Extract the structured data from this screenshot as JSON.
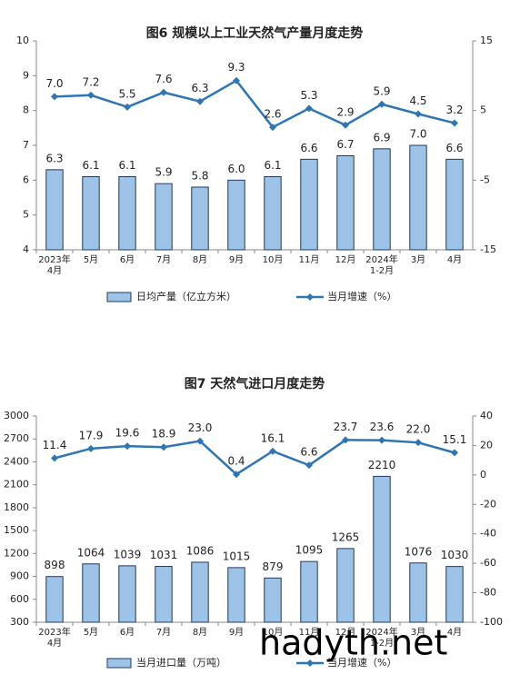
{
  "chart_data": [
    {
      "type": "combo",
      "title": "图6 规模以上工业天然气产量月度走势",
      "categories": [
        "2023年\n4月",
        "5月",
        "6月",
        "7月",
        "8月",
        "9月",
        "10月",
        "11月",
        "12月",
        "2024年\n1-2月",
        "3月",
        "4月"
      ],
      "ylim": [
        4,
        10
      ],
      "yticks": [
        4,
        5,
        6,
        7,
        8,
        9,
        10
      ],
      "y2lim": [
        -15,
        15
      ],
      "y2ticks": [
        -15,
        -5,
        5,
        15
      ],
      "series": [
        {
          "name": "日均产量（亿立方米）",
          "type": "bar",
          "color": "#9dc3e6",
          "values": [
            6.3,
            6.1,
            6.1,
            5.9,
            5.8,
            6.0,
            6.1,
            6.6,
            6.7,
            6.9,
            7.0,
            6.6
          ],
          "value_labels": [
            "6.3",
            "6.1",
            "6.1",
            "5.9",
            "5.8",
            "6.0",
            "6.1",
            "6.6",
            "6.7",
            "6.9",
            "7.0",
            "6.6"
          ]
        },
        {
          "name": "当月增速（%）",
          "type": "line",
          "axis": "y2",
          "color": "#2e75b6",
          "values": [
            7.0,
            7.2,
            5.5,
            7.6,
            6.3,
            9.3,
            2.6,
            5.3,
            2.9,
            5.9,
            4.5,
            3.2
          ],
          "value_labels": [
            "7.0",
            "7.2",
            "5.5",
            "7.6",
            "6.3",
            "9.3",
            "2.6",
            "5.3",
            "2.9",
            "5.9",
            "4.5",
            "3.2"
          ]
        }
      ]
    },
    {
      "type": "combo",
      "title": "图7 天然气进口月度走势",
      "categories": [
        "2023年\n4月",
        "5月",
        "6月",
        "7月",
        "8月",
        "9月",
        "10月",
        "11月",
        "12月",
        "2024年\n1-2月",
        "3月",
        "4月"
      ],
      "ylim": [
        300,
        3000
      ],
      "yticks": [
        300,
        600,
        900,
        1200,
        1500,
        1800,
        2100,
        2400,
        2700,
        3000
      ],
      "y2lim": [
        -100,
        40
      ],
      "y2ticks": [
        -100,
        -80,
        -60,
        -40,
        -20,
        0,
        20,
        40
      ],
      "series": [
        {
          "name": "当月进口量（万吨）",
          "type": "bar",
          "color": "#9dc3e6",
          "values": [
            898,
            1064,
            1039,
            1031,
            1086,
            1015,
            879,
            1095,
            1265,
            2210,
            1076,
            1030
          ]
        },
        {
          "name": "当月增速（%）",
          "type": "line",
          "axis": "y2",
          "color": "#2e75b6",
          "values": [
            11.4,
            17.9,
            19.6,
            18.9,
            23.0,
            0.4,
            16.1,
            6.6,
            23.7,
            23.6,
            22.0,
            15.1
          ],
          "value_labels": [
            "11.4",
            "17.9",
            "19.6",
            "18.9",
            "23.0",
            "0.4",
            "16.1",
            "6.6",
            "23.7",
            "23.6",
            "22.0",
            "15.1"
          ]
        }
      ],
      "watermark": "hadyth.net"
    }
  ]
}
